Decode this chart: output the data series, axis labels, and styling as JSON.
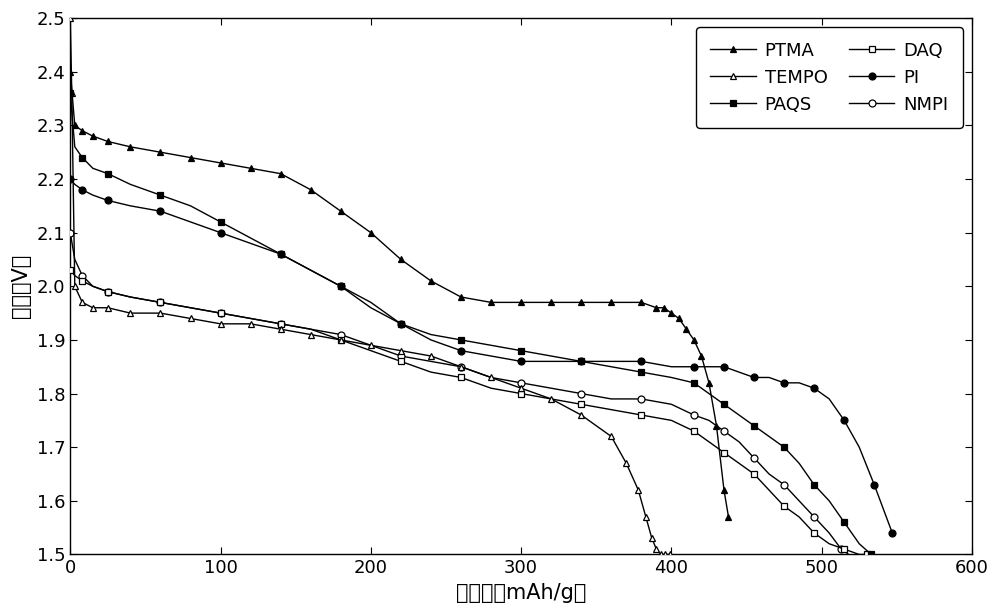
{
  "xlabel": "比容量（mAh/g）",
  "ylabel": "电压（V）",
  "xlim": [
    0,
    600
  ],
  "ylim": [
    1.5,
    2.5
  ],
  "xticks": [
    0,
    100,
    200,
    300,
    400,
    500,
    600
  ],
  "yticks": [
    1.5,
    1.6,
    1.7,
    1.8,
    1.9,
    2.0,
    2.1,
    2.2,
    2.3,
    2.4,
    2.5
  ],
  "series": {
    "PTMA": {
      "marker": "^",
      "filled": true,
      "x": [
        0,
        3,
        8,
        15,
        25,
        40,
        60,
        80,
        100,
        120,
        140,
        160,
        180,
        200,
        220,
        240,
        260,
        280,
        300,
        320,
        340,
        360,
        380,
        390,
        395,
        400,
        405,
        410,
        415,
        420,
        425,
        430,
        435,
        438
      ],
      "y": [
        2.4,
        2.3,
        2.29,
        2.28,
        2.27,
        2.26,
        2.25,
        2.24,
        2.23,
        2.22,
        2.21,
        2.18,
        2.14,
        2.1,
        2.05,
        2.01,
        1.98,
        1.97,
        1.97,
        1.97,
        1.97,
        1.97,
        1.97,
        1.96,
        1.96,
        1.95,
        1.94,
        1.92,
        1.9,
        1.87,
        1.82,
        1.74,
        1.62,
        1.57
      ]
    },
    "PAQS": {
      "marker": "s",
      "filled": true,
      "x": [
        0,
        3,
        8,
        15,
        25,
        40,
        60,
        80,
        100,
        120,
        140,
        160,
        180,
        200,
        220,
        240,
        260,
        280,
        300,
        320,
        340,
        360,
        380,
        400,
        415,
        425,
        435,
        445,
        455,
        465,
        475,
        485,
        495,
        505,
        515,
        525,
        533
      ],
      "y": [
        2.36,
        2.26,
        2.24,
        2.22,
        2.21,
        2.19,
        2.17,
        2.15,
        2.12,
        2.09,
        2.06,
        2.03,
        2.0,
        1.96,
        1.93,
        1.91,
        1.9,
        1.89,
        1.88,
        1.87,
        1.86,
        1.85,
        1.84,
        1.83,
        1.82,
        1.8,
        1.78,
        1.76,
        1.74,
        1.72,
        1.7,
        1.67,
        1.63,
        1.6,
        1.56,
        1.52,
        1.5
      ]
    },
    "PI": {
      "marker": "o",
      "filled": true,
      "x": [
        0,
        3,
        8,
        15,
        25,
        40,
        60,
        80,
        100,
        120,
        140,
        160,
        180,
        200,
        220,
        240,
        260,
        280,
        300,
        320,
        340,
        360,
        380,
        400,
        415,
        425,
        435,
        445,
        455,
        465,
        475,
        485,
        495,
        505,
        515,
        525,
        535,
        543,
        547
      ],
      "y": [
        2.2,
        2.19,
        2.18,
        2.17,
        2.16,
        2.15,
        2.14,
        2.12,
        2.1,
        2.08,
        2.06,
        2.03,
        2.0,
        1.97,
        1.93,
        1.9,
        1.88,
        1.87,
        1.86,
        1.86,
        1.86,
        1.86,
        1.86,
        1.85,
        1.85,
        1.85,
        1.85,
        1.84,
        1.83,
        1.83,
        1.82,
        1.82,
        1.81,
        1.79,
        1.75,
        1.7,
        1.63,
        1.57,
        1.54
      ]
    },
    "TEMPO": {
      "marker": "^",
      "filled": false,
      "x": [
        0,
        1,
        3,
        8,
        15,
        25,
        40,
        60,
        80,
        100,
        120,
        140,
        160,
        180,
        200,
        220,
        240,
        260,
        280,
        300,
        320,
        340,
        360,
        370,
        378,
        383,
        387,
        390,
        393,
        396,
        399
      ],
      "y": [
        2.5,
        2.36,
        2.0,
        1.97,
        1.96,
        1.96,
        1.95,
        1.95,
        1.94,
        1.93,
        1.93,
        1.92,
        1.91,
        1.9,
        1.89,
        1.88,
        1.87,
        1.85,
        1.83,
        1.81,
        1.79,
        1.76,
        1.72,
        1.67,
        1.62,
        1.57,
        1.53,
        1.51,
        1.5,
        1.5,
        1.5
      ]
    },
    "DAQ": {
      "marker": "s",
      "filled": false,
      "x": [
        0,
        3,
        8,
        15,
        25,
        40,
        60,
        80,
        100,
        120,
        140,
        160,
        180,
        200,
        220,
        240,
        260,
        280,
        300,
        320,
        340,
        360,
        380,
        400,
        415,
        425,
        435,
        445,
        455,
        465,
        475,
        485,
        495,
        505,
        515,
        525,
        530
      ],
      "y": [
        2.03,
        2.02,
        2.01,
        2.0,
        1.99,
        1.98,
        1.97,
        1.96,
        1.95,
        1.94,
        1.93,
        1.92,
        1.9,
        1.88,
        1.86,
        1.84,
        1.83,
        1.81,
        1.8,
        1.79,
        1.78,
        1.77,
        1.76,
        1.75,
        1.73,
        1.71,
        1.69,
        1.67,
        1.65,
        1.62,
        1.59,
        1.57,
        1.54,
        1.52,
        1.51,
        1.5,
        1.5
      ]
    },
    "NMPI": {
      "marker": "o",
      "filled": false,
      "x": [
        0,
        3,
        8,
        15,
        25,
        40,
        60,
        80,
        100,
        120,
        140,
        160,
        180,
        200,
        220,
        240,
        260,
        280,
        300,
        320,
        340,
        360,
        380,
        400,
        415,
        425,
        435,
        445,
        455,
        465,
        475,
        485,
        495,
        505,
        513,
        518
      ],
      "y": [
        2.1,
        2.05,
        2.02,
        2.0,
        1.99,
        1.98,
        1.97,
        1.96,
        1.95,
        1.94,
        1.93,
        1.92,
        1.91,
        1.89,
        1.87,
        1.86,
        1.85,
        1.83,
        1.82,
        1.81,
        1.8,
        1.79,
        1.79,
        1.78,
        1.76,
        1.75,
        1.73,
        1.71,
        1.68,
        1.65,
        1.63,
        1.6,
        1.57,
        1.54,
        1.51,
        1.5
      ]
    }
  },
  "legend_order": [
    "PTMA",
    "TEMPO",
    "PAQS",
    "DAQ",
    "PI",
    "NMPI"
  ],
  "legend_ncol": 2,
  "font_size": 13,
  "tick_font_size": 13,
  "label_font_size": 15,
  "marker_size": 5,
  "linewidth": 1.0
}
